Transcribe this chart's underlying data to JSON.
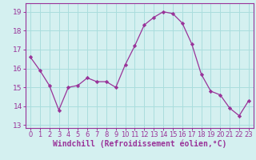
{
  "x": [
    0,
    1,
    2,
    3,
    4,
    5,
    6,
    7,
    8,
    9,
    10,
    11,
    12,
    13,
    14,
    15,
    16,
    17,
    18,
    19,
    20,
    21,
    22,
    23
  ],
  "y": [
    16.6,
    15.9,
    15.1,
    13.8,
    15.0,
    15.1,
    15.5,
    15.3,
    15.3,
    15.0,
    16.2,
    17.2,
    18.3,
    18.7,
    19.0,
    18.9,
    18.4,
    17.3,
    15.7,
    14.8,
    14.6,
    13.9,
    13.5,
    14.3
  ],
  "line_color": "#993399",
  "marker": "D",
  "marker_size": 2.2,
  "bg_color": "#d4f0f0",
  "grid_color": "#aadddd",
  "xlabel": "Windchill (Refroidissement éolien,°C)",
  "ylabel_ticks": [
    13,
    14,
    15,
    16,
    17,
    18,
    19
  ],
  "xtick_labels": [
    "0",
    "1",
    "2",
    "3",
    "4",
    "5",
    "6",
    "7",
    "8",
    "9",
    "10",
    "11",
    "12",
    "13",
    "14",
    "15",
    "16",
    "17",
    "18",
    "19",
    "20",
    "21",
    "22",
    "23"
  ],
  "xlim": [
    -0.5,
    23.5
  ],
  "ylim": [
    12.85,
    19.45
  ],
  "axes_color": "#993399",
  "tick_color": "#993399",
  "label_color": "#993399",
  "font_size_xlabel": 7.0,
  "font_size_tick": 6.5
}
